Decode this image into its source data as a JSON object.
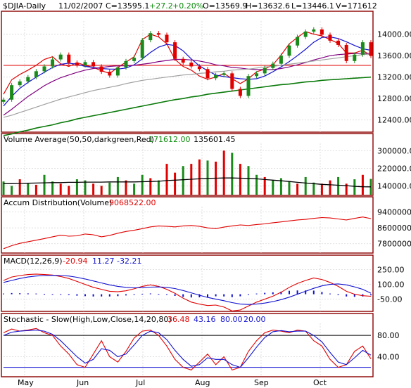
{
  "header": {
    "symbol": "$DJIA-Daily",
    "date": "11/02/2007",
    "close": "C=13595.1",
    "change": "+27.2",
    "pct_change": "+0.20%",
    "open": "O=13569.9",
    "high": "H=13632.6",
    "low": "L=13446.1",
    "volume": "V=171612"
  },
  "colors": {
    "background": "#ffffff",
    "frame": "#8b0000",
    "grid": "#d8d8d8",
    "label_red": "#e00000",
    "label_blue": "#1010d0",
    "label_green": "#0a8a0a",
    "candle_up": "#1a8a1a",
    "candle_down": "#e00000"
  },
  "chart_data": [
    {
      "type": "line",
      "title": "$DJIA-Daily",
      "x_labels": [
        "May",
        "Jun",
        "Jul",
        "Aug",
        "Sep",
        "Oct"
      ],
      "ylim": [
        12200,
        14350
      ],
      "y_ticks": [
        "14000.00",
        "13600.00",
        "13200.00",
        "12800.00",
        "12400.00"
      ],
      "y_tick_values": [
        14000,
        13600,
        13200,
        12800,
        12400
      ],
      "reference_line": 13420,
      "series": [
        {
          "color": "#e00000",
          "values": [
            12880,
            13150,
            13250,
            13330,
            13420,
            13530,
            13580,
            13450,
            13400,
            13470,
            13420,
            13380,
            13320,
            13270,
            13380,
            13480,
            13580,
            13900,
            14000,
            13950,
            13820,
            13530,
            13400,
            13330,
            13220,
            13160,
            13200,
            13270,
            13170,
            13080,
            13170,
            13300,
            13350,
            13430,
            13610,
            13820,
            13940,
            14050,
            14000,
            13970,
            13900,
            13830,
            13650,
            13650,
            13700,
            13600
          ]
        },
        {
          "color": "#1010d0",
          "values": [
            12660,
            12840,
            12990,
            13100,
            13200,
            13290,
            13380,
            13440,
            13460,
            13440,
            13400,
            13380,
            13360,
            13350,
            13350,
            13370,
            13430,
            13540,
            13660,
            13760,
            13810,
            13790,
            13690,
            13540,
            13410,
            13320,
            13240,
            13210,
            13190,
            13170,
            13160,
            13170,
            13220,
            13300,
            13390,
            13490,
            13600,
            13720,
            13850,
            13940,
            13950,
            13920,
            13860,
            13790,
            13730,
            13700
          ]
        },
        {
          "color": "#800080",
          "values": [
            12490,
            12600,
            12720,
            12840,
            12940,
            13040,
            13120,
            13190,
            13240,
            13290,
            13330,
            13360,
            13380,
            13400,
            13410,
            13410,
            13420,
            13440,
            13460,
            13490,
            13510,
            13530,
            13530,
            13520,
            13500,
            13470,
            13430,
            13410,
            13380,
            13370,
            13350,
            13340,
            13340,
            13340,
            13360,
            13390,
            13430,
            13470,
            13520,
            13560,
            13600,
            13620,
            13630,
            13640,
            13640,
            13640
          ]
        },
        {
          "color": "#a0a0a0",
          "values": [
            12450,
            12490,
            12540,
            12590,
            12640,
            12690,
            12740,
            12790,
            12830,
            12870,
            12910,
            12950,
            12980,
            13010,
            13040,
            13080,
            13110,
            13140,
            13160,
            13180,
            13200,
            13220,
            13240,
            13250,
            13270,
            13280,
            13300,
            13310,
            13330,
            13340,
            13350,
            13370,
            13390,
            13400,
            13420,
            13440,
            13460,
            13480,
            13500,
            13520,
            13540,
            13560,
            13580,
            13600,
            13620,
            13630
          ]
        },
        {
          "color": "#0a7a0a",
          "values": [
            12110,
            12140,
            12180,
            12210,
            12250,
            12280,
            12310,
            12350,
            12380,
            12420,
            12450,
            12480,
            12510,
            12540,
            12570,
            12600,
            12630,
            12660,
            12690,
            12720,
            12750,
            12780,
            12800,
            12830,
            12850,
            12880,
            12900,
            12920,
            12940,
            12960,
            12980,
            13000,
            13020,
            13040,
            13060,
            13070,
            13090,
            13110,
            13120,
            13140,
            13150,
            13160,
            13170,
            13180,
            13190,
            13200
          ]
        }
      ],
      "price_close": [
        12780,
        13050,
        13120,
        13200,
        13310,
        13400,
        13530,
        13620,
        13470,
        13420,
        13480,
        13400,
        13300,
        13230,
        13380,
        13500,
        13560,
        13890,
        14020,
        13990,
        13850,
        13540,
        13470,
        13400,
        13350,
        13180,
        13240,
        13270,
        12980,
        12850,
        13220,
        13270,
        13370,
        13450,
        13600,
        13790,
        13950,
        14050,
        14090,
        13990,
        13880,
        13800,
        13500,
        13620,
        13850,
        13595
      ]
    },
    {
      "type": "bar",
      "title": "Volume Average(50,50,darkgreen,Red)",
      "value1": "171612.00",
      "value2": "135601.45",
      "ylim": [
        100000,
        320000
      ],
      "y_ticks": [
        "300000.00",
        "220000.00",
        "140000.00"
      ],
      "y_tick_values": [
        300000,
        220000,
        140000
      ],
      "bar_colors_up": "#1a8a1a",
      "bar_colors_down": "#e00000",
      "average_color": "#000000",
      "volumes": [
        160000,
        140000,
        170000,
        150000,
        145000,
        190000,
        160000,
        150000,
        140000,
        170000,
        165000,
        150000,
        140000,
        155000,
        180000,
        165000,
        150000,
        190000,
        175000,
        165000,
        240000,
        200000,
        230000,
        240000,
        260000,
        255000,
        250000,
        300000,
        290000,
        240000,
        230000,
        190000,
        180000,
        165000,
        175000,
        160000,
        150000,
        180000,
        155000,
        150000,
        165000,
        180000,
        150000,
        170000,
        190000,
        171612
      ],
      "up_flags": [
        1,
        1,
        0,
        1,
        0,
        1,
        1,
        0,
        0,
        1,
        1,
        0,
        0,
        1,
        1,
        0,
        1,
        1,
        0,
        1,
        0,
        0,
        1,
        0,
        0,
        1,
        0,
        0,
        1,
        0,
        1,
        1,
        0,
        1,
        1,
        1,
        0,
        1,
        1,
        0,
        0,
        1,
        0,
        1,
        0,
        1
      ],
      "average": [
        150000,
        150000,
        151000,
        152000,
        153000,
        154000,
        155000,
        155000,
        156000,
        156000,
        157000,
        157000,
        157000,
        158000,
        158000,
        158000,
        158000,
        159000,
        160000,
        161000,
        164000,
        166000,
        168000,
        170000,
        172000,
        174000,
        175000,
        176000,
        176000,
        175000,
        174000,
        172000,
        169000,
        166000,
        163000,
        160000,
        156000,
        153000,
        150000,
        147000,
        145000,
        143000,
        141000,
        138000,
        136000,
        135601
      ]
    },
    {
      "type": "line",
      "title": "Accum Distribution(Volume)",
      "value": "9068522.00",
      "ylim": [
        7400000,
        9600000
      ],
      "y_ticks": [
        "9400000.00",
        "8600000.00",
        "7800000.00"
      ],
      "y_tick_values": [
        9400000,
        8600000,
        7800000
      ],
      "color": "#e00000",
      "values": [
        7550000,
        7700000,
        7820000,
        7900000,
        7980000,
        8060000,
        8150000,
        8230000,
        8180000,
        8200000,
        8290000,
        8250000,
        8150000,
        8220000,
        8330000,
        8420000,
        8480000,
        8560000,
        8650000,
        8700000,
        8680000,
        8650000,
        8700000,
        8720000,
        8680000,
        8600000,
        8560000,
        8640000,
        8700000,
        8750000,
        8720000,
        8770000,
        8800000,
        8860000,
        8900000,
        8950000,
        9000000,
        9030000,
        9080000,
        9120000,
        9100000,
        9050000,
        9000000,
        9080000,
        9150000,
        9068522
      ]
    },
    {
      "type": "line",
      "title": "MACD(12,26,9)",
      "values_text": [
        "-20.94",
        "11.27",
        "-32.21"
      ],
      "ylim": [
        -160,
        290
      ],
      "y_ticks": [
        "250.00",
        "100.00",
        "-50.00"
      ],
      "y_tick_values": [
        250,
        100,
        -50
      ],
      "macd_color": "#e00000",
      "signal_color": "#1010d0",
      "hist_color": "#1010d0",
      "macd": [
        140,
        175,
        190,
        200,
        205,
        200,
        195,
        180,
        160,
        130,
        100,
        70,
        50,
        30,
        25,
        35,
        55,
        80,
        95,
        80,
        50,
        10,
        -40,
        -80,
        -100,
        -115,
        -110,
        -130,
        -170,
        -160,
        -120,
        -80,
        -50,
        -20,
        20,
        70,
        110,
        140,
        165,
        150,
        120,
        80,
        30,
        0,
        -15,
        -21
      ],
      "signal": [
        120,
        140,
        160,
        175,
        185,
        190,
        192,
        190,
        185,
        172,
        155,
        135,
        115,
        95,
        80,
        70,
        65,
        67,
        72,
        74,
        70,
        58,
        38,
        14,
        -10,
        -32,
        -50,
        -66,
        -85,
        -100,
        -104,
        -100,
        -90,
        -75,
        -55,
        -30,
        0,
        30,
        60,
        85,
        100,
        105,
        95,
        75,
        50,
        11
      ],
      "hist_scale": 0.35
    },
    {
      "type": "line",
      "title": "Stochastic - Slow(High,Low,Close,14,20,80)",
      "values_text": [
        "36.48",
        "43.16",
        "80.00",
        "20.00"
      ],
      "ylim": [
        5,
        100
      ],
      "y_ticks": [
        "80.00",
        "40.00"
      ],
      "y_tick_values": [
        80,
        40
      ],
      "fast_color": "#e00000",
      "slow_color": "#1010d0",
      "levels": [
        80,
        20
      ],
      "fast": [
        85,
        92,
        88,
        90,
        93,
        85,
        80,
        60,
        45,
        25,
        20,
        45,
        70,
        40,
        30,
        50,
        75,
        88,
        90,
        80,
        60,
        35,
        20,
        15,
        30,
        45,
        25,
        40,
        15,
        20,
        50,
        70,
        85,
        90,
        88,
        85,
        90,
        88,
        70,
        60,
        35,
        20,
        25,
        50,
        60,
        36
      ],
      "slow": [
        80,
        86,
        88,
        89,
        90,
        88,
        82,
        70,
        55,
        40,
        28,
        35,
        55,
        52,
        40,
        45,
        62,
        80,
        88,
        85,
        72,
        52,
        35,
        22,
        25,
        38,
        35,
        35,
        25,
        20,
        38,
        58,
        76,
        87,
        89,
        87,
        88,
        88,
        80,
        68,
        48,
        30,
        25,
        38,
        52,
        43
      ]
    }
  ]
}
